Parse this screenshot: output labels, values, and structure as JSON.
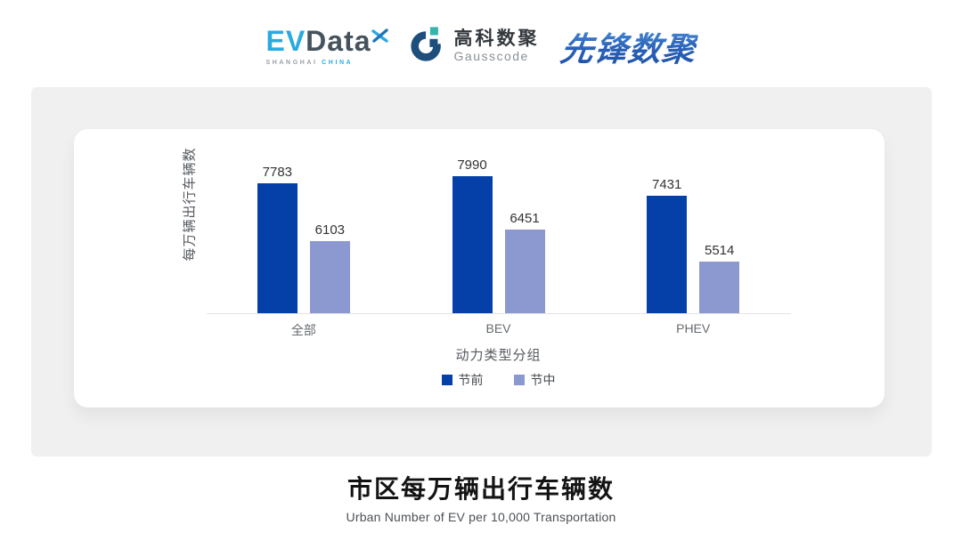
{
  "header": {
    "evdata": {
      "ev": "EV",
      "data": "Data",
      "shanghai": "SHANGHAI",
      "china": "CHINA"
    },
    "gausscode": {
      "cn": "高科数聚",
      "en": "Gausscode"
    },
    "pioneer": "先锋数聚"
  },
  "chart_data": {
    "type": "bar",
    "title": "市区每万辆出行车辆数",
    "subtitle": "Urban Number of EV per 10,000 Transportation",
    "categories": [
      "全部",
      "BEV",
      "PHEV"
    ],
    "series": [
      {
        "name": "节前",
        "color": "#0540a8",
        "values": [
          7783,
          7990,
          7431
        ]
      },
      {
        "name": "节中",
        "color": "#8c98d0",
        "values": [
          6103,
          6451,
          5514
        ]
      }
    ],
    "xlabel": "动力类型分组",
    "ylabel": "每万辆出行车辆数",
    "ylim": [
      4000,
      8000
    ],
    "grid": false,
    "legend_position": "bottom",
    "value_labels": true
  },
  "colors": {
    "accent_light_blue": "#29abe2",
    "accent_dark_slate": "#46525c",
    "gauss_navy": "#1e4e7c",
    "gauss_teal": "#35b5ad",
    "panel_gray": "#f0f0f1"
  }
}
